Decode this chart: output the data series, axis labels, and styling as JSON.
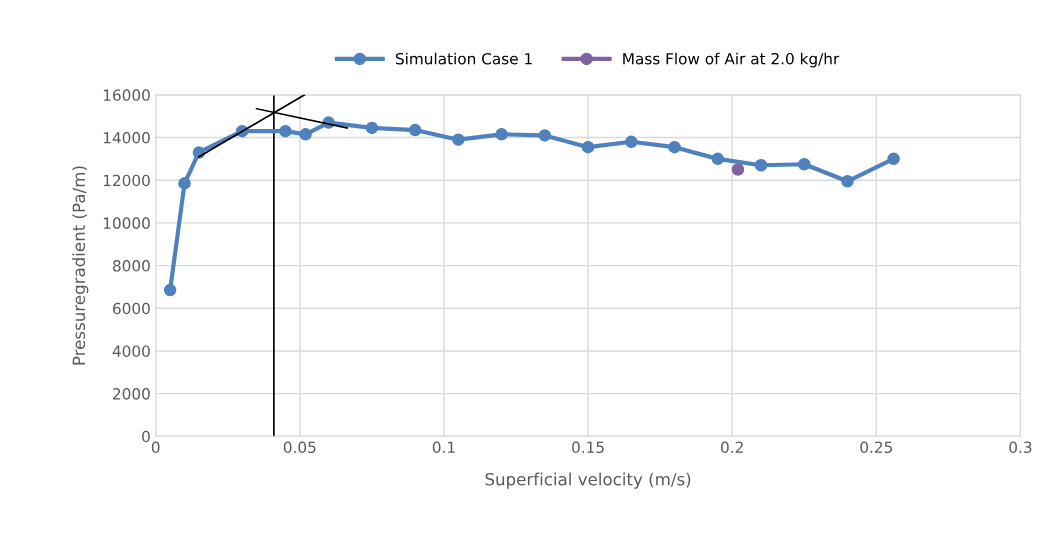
{
  "chart_data": {
    "type": "line",
    "xlabel": "Superficial velocity (m/s)",
    "ylabel": "Pressuregradient (Pa/m)",
    "xlim": [
      0,
      0.3
    ],
    "xticks": [
      0,
      0.05,
      0.1,
      0.15,
      0.2,
      0.25,
      0.3
    ],
    "ylim": [
      0,
      16000
    ],
    "yticks": [
      0,
      2000,
      4000,
      6000,
      8000,
      10000,
      12000,
      14000,
      16000
    ],
    "grid": true,
    "legend": "top",
    "marker": "circle",
    "series": [
      {
        "name": "Simulation Case 1",
        "color": "#4f81bd",
        "x": [
          0.005,
          0.01,
          0.015,
          0.03,
          0.045,
          0.052,
          0.06,
          0.075,
          0.09,
          0.105,
          0.12,
          0.135,
          0.15,
          0.165,
          0.18,
          0.195,
          0.21,
          0.225,
          0.24,
          0.256
        ],
        "values": [
          6850,
          11850,
          13300,
          14300,
          14300,
          14150,
          14700,
          14450,
          14350,
          13900,
          14150,
          14100,
          13550,
          13800,
          13550,
          13000,
          12700,
          12750,
          11950,
          13000
        ]
      },
      {
        "name": "Mass Flow of Air at 2.0 kg/hr",
        "color": "#8064a2",
        "type": "scatter",
        "x": [
          0.202
        ],
        "values": [
          12500
        ]
      },
      {
        "color": "#000000",
        "marker": "none",
        "x": [
          0.015,
          0.0516
        ],
        "values": [
          13100,
          16000
        ]
      },
      {
        "color": "#000000",
        "marker": "none",
        "x": [
          0.035,
          0.0664
        ],
        "values": [
          15350,
          14450
        ]
      }
    ],
    "ref_lines": [
      {
        "axis": "x",
        "value": 0.041,
        "color": "#000000"
      }
    ]
  }
}
